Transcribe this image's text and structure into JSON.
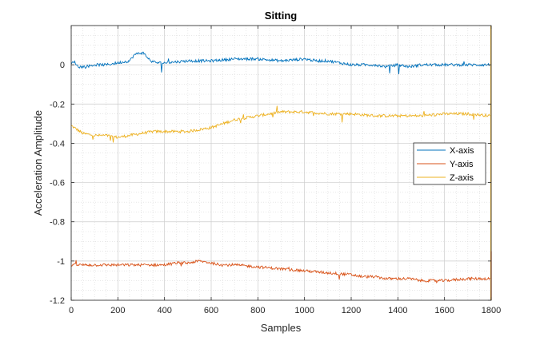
{
  "chart_data": {
    "type": "line",
    "title": "Sitting",
    "xlabel": "Samples",
    "ylabel": "Acceleration Amplitude",
    "xlim": [
      0,
      1800
    ],
    "ylim": [
      -1.2,
      0.2
    ],
    "xticks": [
      0,
      200,
      400,
      600,
      800,
      1000,
      1200,
      1400,
      1600,
      1800
    ],
    "yticks": [
      -1.2,
      -1,
      -0.8,
      -0.6,
      -0.4,
      -0.2,
      0
    ],
    "xtick_labels": [
      "0",
      "200",
      "400",
      "600",
      "800",
      "1000",
      "1200",
      "1400",
      "1600",
      "1800"
    ],
    "ytick_labels": [
      "-1.2",
      "-1",
      "-0.8",
      "-0.6",
      "-0.4",
      "-0.2",
      "0"
    ],
    "grid": true,
    "minor_grid": true,
    "legend_position": "right",
    "series": [
      {
        "name": "X-axis",
        "color": "#0072BD",
        "x": [
          0,
          10,
          30,
          60,
          100,
          150,
          200,
          250,
          270,
          290,
          310,
          340,
          370,
          400,
          500,
          600,
          700,
          800,
          900,
          1000,
          1050,
          1100,
          1150,
          1200,
          1250,
          1300,
          1350,
          1400,
          1450,
          1500,
          1600,
          1700,
          1800
        ],
        "y": [
          0.0,
          0.02,
          -0.01,
          -0.01,
          0.0,
          0.0,
          0.01,
          0.02,
          0.05,
          0.06,
          0.06,
          0.02,
          0.01,
          0.01,
          0.02,
          0.02,
          0.03,
          0.03,
          0.02,
          0.03,
          0.02,
          0.02,
          0.01,
          0.0,
          0.0,
          0.0,
          -0.01,
          0.0,
          -0.01,
          0.0,
          0.0,
          0.0,
          0.0
        ]
      },
      {
        "name": "Y-axis",
        "color": "#D95319",
        "x": [
          0,
          50,
          100,
          150,
          200,
          250,
          300,
          350,
          400,
          450,
          500,
          550,
          600,
          650,
          700,
          800,
          900,
          1000,
          1100,
          1200,
          1250,
          1300,
          1350,
          1400,
          1450,
          1500,
          1600,
          1700,
          1800
        ],
        "y": [
          -1.02,
          -1.02,
          -1.02,
          -1.02,
          -1.02,
          -1.02,
          -1.02,
          -1.02,
          -1.02,
          -1.01,
          -1.01,
          -1.0,
          -1.01,
          -1.02,
          -1.02,
          -1.03,
          -1.04,
          -1.05,
          -1.06,
          -1.07,
          -1.08,
          -1.08,
          -1.09,
          -1.09,
          -1.09,
          -1.1,
          -1.1,
          -1.09,
          -1.09
        ]
      },
      {
        "name": "Z-axis",
        "color": "#EDB120",
        "x": [
          0,
          50,
          100,
          150,
          200,
          250,
          300,
          350,
          400,
          450,
          500,
          550,
          600,
          650,
          700,
          750,
          800,
          850,
          900,
          950,
          1000,
          1100,
          1200,
          1300,
          1400,
          1500,
          1600,
          1700,
          1800
        ],
        "y": [
          -0.31,
          -0.35,
          -0.36,
          -0.36,
          -0.37,
          -0.36,
          -0.35,
          -0.34,
          -0.34,
          -0.34,
          -0.34,
          -0.33,
          -0.32,
          -0.3,
          -0.28,
          -0.27,
          -0.26,
          -0.25,
          -0.24,
          -0.24,
          -0.24,
          -0.25,
          -0.25,
          -0.26,
          -0.26,
          -0.26,
          -0.25,
          -0.25,
          -0.26
        ]
      }
    ]
  }
}
